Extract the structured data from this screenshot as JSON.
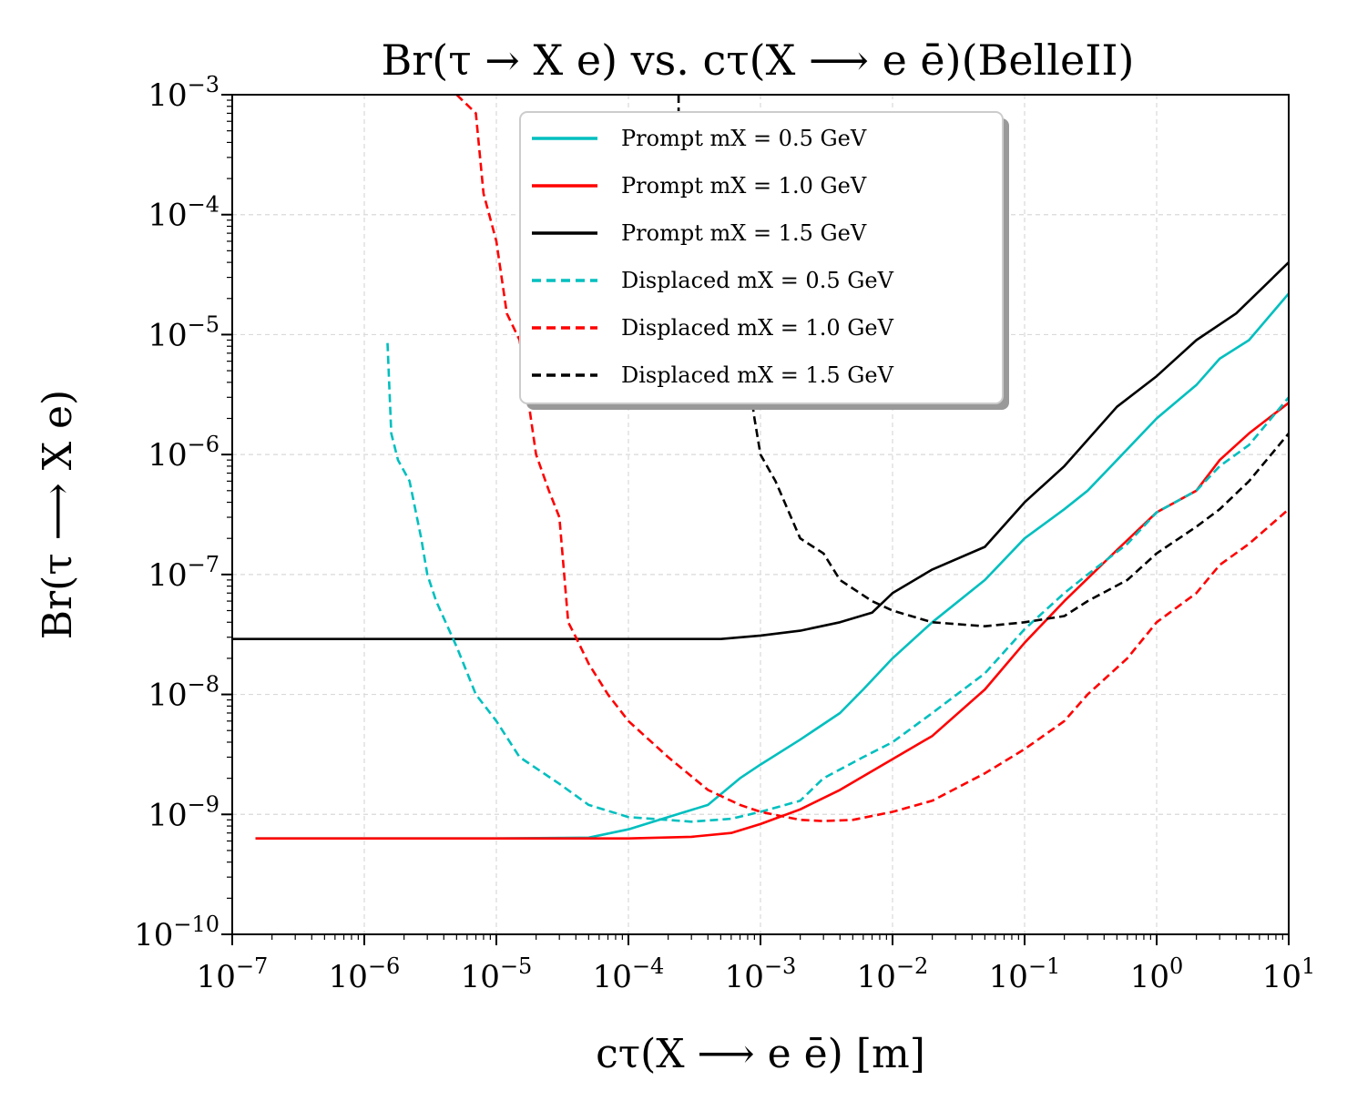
{
  "chart_data": {
    "type": "line",
    "title": "Br(τ → X e) vs. cτ(X ⟶ e ē)(BelleII)",
    "xlabel": "cτ(X ⟶ e ē) [m]",
    "ylabel": "Br(τ ⟶ X e)",
    "xscale": "log",
    "yscale": "log",
    "xlim": [
      1e-07,
      10
    ],
    "ylim": [
      1e-10,
      0.001
    ],
    "grid": true,
    "legend_position": "top-center",
    "x_ticks": [
      {
        "value": 1e-07,
        "base": "10",
        "exp": "−7"
      },
      {
        "value": 1e-06,
        "base": "10",
        "exp": "−6"
      },
      {
        "value": 1e-05,
        "base": "10",
        "exp": "−5"
      },
      {
        "value": 0.0001,
        "base": "10",
        "exp": "−4"
      },
      {
        "value": 0.001,
        "base": "10",
        "exp": "−3"
      },
      {
        "value": 0.01,
        "base": "10",
        "exp": "−2"
      },
      {
        "value": 0.1,
        "base": "10",
        "exp": "−1"
      },
      {
        "value": 1,
        "base": "10",
        "exp": "0"
      },
      {
        "value": 10,
        "base": "10",
        "exp": "1"
      }
    ],
    "y_ticks": [
      {
        "value": 1e-10,
        "base": "10",
        "exp": "−10"
      },
      {
        "value": 1e-09,
        "base": "10",
        "exp": "−9"
      },
      {
        "value": 1e-08,
        "base": "10",
        "exp": "−8"
      },
      {
        "value": 1e-07,
        "base": "10",
        "exp": "−7"
      },
      {
        "value": 1e-06,
        "base": "10",
        "exp": "−6"
      },
      {
        "value": 1e-05,
        "base": "10",
        "exp": "−5"
      },
      {
        "value": 0.0001,
        "base": "10",
        "exp": "−4"
      },
      {
        "value": 0.001,
        "base": "10",
        "exp": "−3"
      }
    ],
    "series": [
      {
        "name": "Prompt mX = 0.5 GeV",
        "color": "#00bfbf",
        "style": "solid",
        "points": [
          [
            1.5e-07,
            6.3e-10
          ],
          [
            1e-06,
            6.3e-10
          ],
          [
            1e-05,
            6.3e-10
          ],
          [
            5e-05,
            6.4e-10
          ],
          [
            0.0001,
            7.5e-10
          ],
          [
            0.0002,
            9.5e-10
          ],
          [
            0.0004,
            1.2e-09
          ],
          [
            0.0007,
            2e-09
          ],
          [
            0.001,
            2.6e-09
          ],
          [
            0.002,
            4.2e-09
          ],
          [
            0.004,
            7e-09
          ],
          [
            0.006,
            1.1e-08
          ],
          [
            0.01,
            2e-08
          ],
          [
            0.02,
            4e-08
          ],
          [
            0.05,
            9e-08
          ],
          [
            0.1,
            2e-07
          ],
          [
            0.2,
            3.5e-07
          ],
          [
            0.3,
            5e-07
          ],
          [
            0.5,
            9e-07
          ],
          [
            1,
            2e-06
          ],
          [
            2,
            3.8e-06
          ],
          [
            3,
            6.3e-06
          ],
          [
            5,
            9e-06
          ],
          [
            10,
            2.2e-05
          ]
        ]
      },
      {
        "name": "Prompt mX = 1.0 GeV",
        "color": "#ff0000",
        "style": "solid",
        "points": [
          [
            1.5e-07,
            6.3e-10
          ],
          [
            1e-06,
            6.3e-10
          ],
          [
            1e-05,
            6.3e-10
          ],
          [
            0.0001,
            6.3e-10
          ],
          [
            0.0003,
            6.5e-10
          ],
          [
            0.0006,
            7e-10
          ],
          [
            0.001,
            8.3e-10
          ],
          [
            0.002,
            1.1e-09
          ],
          [
            0.004,
            1.6e-09
          ],
          [
            0.008,
            2.5e-09
          ],
          [
            0.02,
            4.5e-09
          ],
          [
            0.05,
            1.1e-08
          ],
          [
            0.1,
            2.7e-08
          ],
          [
            0.2,
            6e-08
          ],
          [
            0.5,
            1.6e-07
          ],
          [
            1,
            3.3e-07
          ],
          [
            2,
            5e-07
          ],
          [
            3,
            9e-07
          ],
          [
            5,
            1.5e-06
          ],
          [
            10,
            2.7e-06
          ]
        ]
      },
      {
        "name": "Prompt mX = 1.5 GeV",
        "color": "#000000",
        "style": "solid",
        "points": [
          [
            1e-07,
            2.9e-08
          ],
          [
            1e-06,
            2.9e-08
          ],
          [
            1e-05,
            2.9e-08
          ],
          [
            0.0001,
            2.9e-08
          ],
          [
            0.0005,
            2.9e-08
          ],
          [
            0.001,
            3.1e-08
          ],
          [
            0.002,
            3.4e-08
          ],
          [
            0.004,
            4e-08
          ],
          [
            0.007,
            4.8e-08
          ],
          [
            0.01,
            7e-08
          ],
          [
            0.02,
            1.1e-07
          ],
          [
            0.05,
            1.7e-07
          ],
          [
            0.1,
            4e-07
          ],
          [
            0.2,
            8e-07
          ],
          [
            0.5,
            2.5e-06
          ],
          [
            1,
            4.5e-06
          ],
          [
            2,
            9e-06
          ],
          [
            4,
            1.5e-05
          ],
          [
            10,
            4e-05
          ]
        ]
      },
      {
        "name": "Displaced mX = 0.5 GeV",
        "color": "#00bfbf",
        "style": "dashed",
        "points": [
          [
            1.5e-06,
            8.5e-06
          ],
          [
            1.6e-06,
            1.5e-06
          ],
          [
            1.8e-06,
            9e-07
          ],
          [
            2.2e-06,
            6e-07
          ],
          [
            2.7e-06,
            2e-07
          ],
          [
            3e-06,
            1e-07
          ],
          [
            3.5e-06,
            6e-08
          ],
          [
            5e-06,
            2.5e-08
          ],
          [
            7e-06,
            1e-08
          ],
          [
            1e-05,
            6e-09
          ],
          [
            1.5e-05,
            3e-09
          ],
          [
            3e-05,
            1.8e-09
          ],
          [
            5e-05,
            1.2e-09
          ],
          [
            0.0001,
            9.5e-10
          ],
          [
            0.0003,
            8.7e-10
          ],
          [
            0.0006,
            9.2e-10
          ],
          [
            0.001,
            1.05e-09
          ],
          [
            0.002,
            1.3e-09
          ],
          [
            0.003,
            2e-09
          ],
          [
            0.006,
            3e-09
          ],
          [
            0.01,
            4e-09
          ],
          [
            0.02,
            7e-09
          ],
          [
            0.05,
            1.5e-08
          ],
          [
            0.1,
            3.5e-08
          ],
          [
            0.2,
            7e-08
          ],
          [
            0.3,
            1e-07
          ],
          [
            0.6,
            1.8e-07
          ],
          [
            1,
            3.3e-07
          ],
          [
            2,
            5e-07
          ],
          [
            3,
            8e-07
          ],
          [
            5,
            1.2e-06
          ],
          [
            10,
            3e-06
          ]
        ]
      },
      {
        "name": "Displaced mX = 1.0 GeV",
        "color": "#ff0000",
        "style": "dashed",
        "points": [
          [
            5e-06,
            0.001
          ],
          [
            7e-06,
            0.0007
          ],
          [
            8e-06,
            0.00015
          ],
          [
            1e-05,
            6e-05
          ],
          [
            1.2e-05,
            1.5e-05
          ],
          [
            1.5e-05,
            9e-06
          ],
          [
            2e-05,
            1e-06
          ],
          [
            2.5e-05,
            5e-07
          ],
          [
            3e-05,
            3e-07
          ],
          [
            3.5e-05,
            4e-08
          ],
          [
            4e-05,
            3e-08
          ],
          [
            5e-05,
            1.8e-08
          ],
          [
            7e-05,
            1e-08
          ],
          [
            0.0001,
            6e-09
          ],
          [
            0.0002,
            3e-09
          ],
          [
            0.0004,
            1.6e-09
          ],
          [
            0.0007,
            1.2e-09
          ],
          [
            0.001,
            1.05e-09
          ],
          [
            0.002,
            9e-10
          ],
          [
            0.003,
            8.8e-10
          ],
          [
            0.005,
            9e-10
          ],
          [
            0.01,
            1.05e-09
          ],
          [
            0.02,
            1.3e-09
          ],
          [
            0.05,
            2.2e-09
          ],
          [
            0.1,
            3.5e-09
          ],
          [
            0.2,
            6e-09
          ],
          [
            0.3,
            1e-08
          ],
          [
            0.6,
            2e-08
          ],
          [
            1,
            4e-08
          ],
          [
            2,
            7e-08
          ],
          [
            3,
            1.2e-07
          ],
          [
            5,
            1.8e-07
          ],
          [
            10,
            3.5e-07
          ]
        ]
      },
      {
        "name": "Displaced mX = 1.5 GeV",
        "color": "#000000",
        "style": "dashed",
        "points": [
          [
            0.00024,
            0.001
          ],
          [
            0.00024,
            0.0006
          ],
          [
            0.0008,
            5e-06
          ],
          [
            0.0009,
            2e-06
          ],
          [
            0.001,
            1e-06
          ],
          [
            0.0013,
            6e-07
          ],
          [
            0.002,
            2e-07
          ],
          [
            0.003,
            1.5e-07
          ],
          [
            0.004,
            9e-08
          ],
          [
            0.007,
            6e-08
          ],
          [
            0.01,
            5e-08
          ],
          [
            0.02,
            4e-08
          ],
          [
            0.05,
            3.7e-08
          ],
          [
            0.1,
            4e-08
          ],
          [
            0.2,
            4.5e-08
          ],
          [
            0.3,
            6e-08
          ],
          [
            0.6,
            9e-08
          ],
          [
            1,
            1.5e-07
          ],
          [
            2,
            2.5e-07
          ],
          [
            3,
            3.5e-07
          ],
          [
            5,
            6e-07
          ],
          [
            10,
            1.5e-06
          ]
        ]
      }
    ]
  }
}
